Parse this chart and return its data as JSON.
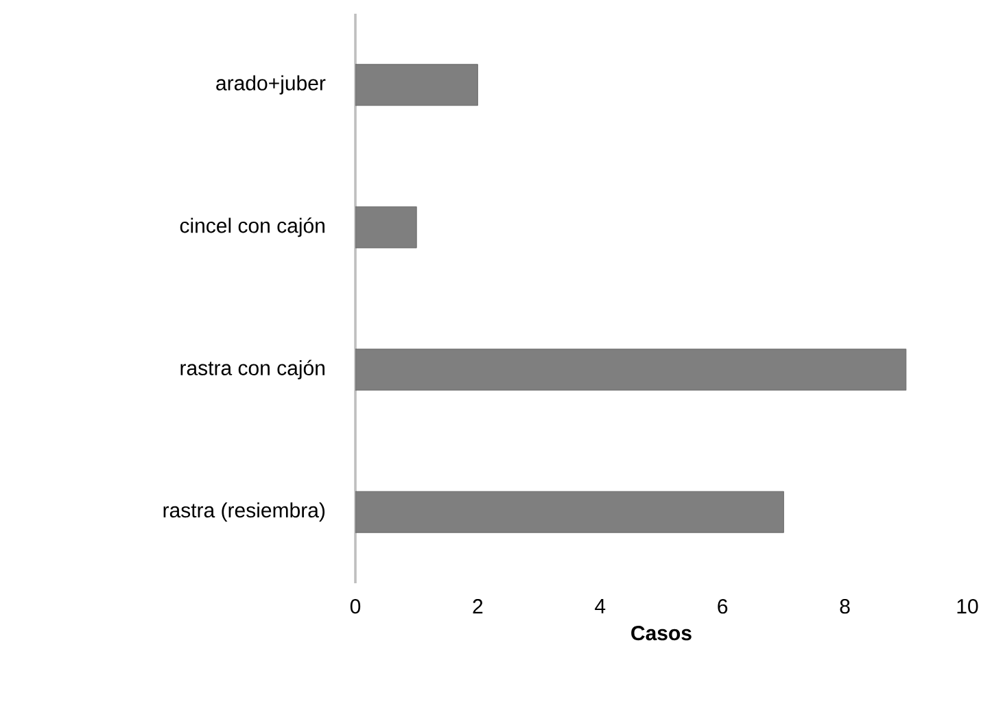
{
  "chart_data": {
    "type": "bar",
    "orientation": "horizontal",
    "categories": [
      "arado+juber",
      "cincel con cajón",
      "rastra con cajón",
      "rastra (resiembra)"
    ],
    "values": [
      2,
      1,
      9,
      7
    ],
    "color": "#7f7f7f",
    "xlim": [
      0,
      10
    ],
    "xticks": [
      0,
      2,
      4,
      6,
      8,
      10
    ],
    "xlabel": "Casos"
  }
}
